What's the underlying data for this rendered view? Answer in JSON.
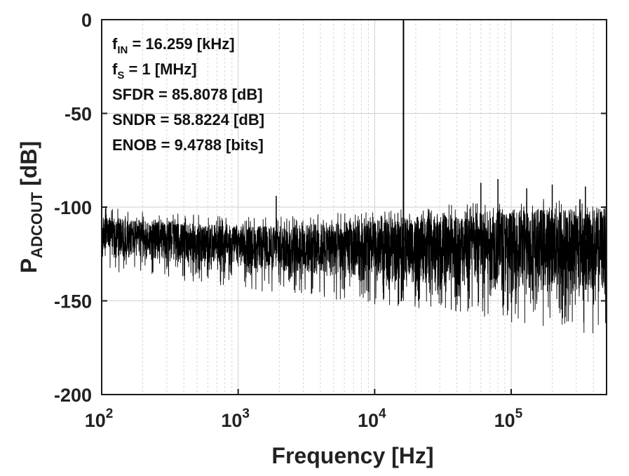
{
  "chart_data": {
    "type": "line",
    "xscale": "log",
    "xlim": [
      100,
      500000
    ],
    "ylim": [
      -200,
      0
    ],
    "xlabel": "Frequency [Hz]",
    "ylabel": {
      "main": "P",
      "sub": "ADCOUT",
      "unit": " [dB]"
    },
    "grid": true,
    "x_ticks": [
      {
        "value": 100,
        "base": "10",
        "exp": "2"
      },
      {
        "value": 1000,
        "base": "10",
        "exp": "3"
      },
      {
        "value": 10000,
        "base": "10",
        "exp": "4"
      },
      {
        "value": 100000,
        "base": "10",
        "exp": "5"
      }
    ],
    "y_ticks": [
      {
        "value": 0,
        "label": "0"
      },
      {
        "value": -50,
        "label": "-50"
      },
      {
        "value": -100,
        "label": "-100"
      },
      {
        "value": -150,
        "label": "-150"
      },
      {
        "value": -200,
        "label": "-200"
      }
    ],
    "line_color": "#000000",
    "noise_envelope": [
      {
        "f": 100,
        "upper": -105,
        "lower": -125,
        "min_spike": -135
      },
      {
        "f": 200,
        "upper": -107,
        "lower": -128,
        "min_spike": -137
      },
      {
        "f": 500,
        "upper": -109,
        "lower": -130,
        "min_spike": -140
      },
      {
        "f": 1000,
        "upper": -110,
        "lower": -132,
        "min_spike": -143
      },
      {
        "f": 2000,
        "upper": -110,
        "lower": -135,
        "min_spike": -147
      },
      {
        "f": 5000,
        "upper": -108,
        "lower": -138,
        "min_spike": -150
      },
      {
        "f": 10000,
        "upper": -107,
        "lower": -140,
        "min_spike": -152
      },
      {
        "f": 30000,
        "upper": -104,
        "lower": -142,
        "min_spike": -155
      },
      {
        "f": 100000,
        "upper": -101,
        "lower": -145,
        "min_spike": -162
      },
      {
        "f": 300000,
        "upper": -100,
        "lower": -146,
        "min_spike": -167
      },
      {
        "f": 500000,
        "upper": -100,
        "lower": -147,
        "min_spike": -170
      }
    ],
    "fundamental": {
      "f": 16259,
      "power": 0
    },
    "spurs": [
      {
        "f": 1900,
        "power": -94
      },
      {
        "f": 60000,
        "power": -87
      },
      {
        "f": 80000,
        "power": -85
      },
      {
        "f": 130000,
        "power": -90
      },
      {
        "f": 200000,
        "power": -88
      },
      {
        "f": 350000,
        "power": -89
      }
    ],
    "annotations": [
      {
        "main": "f",
        "sub": "IN",
        "text": " = 16.259 [kHz]"
      },
      {
        "main": "f",
        "sub": "S",
        "text": " = 1 [MHz]"
      },
      {
        "main": "SFDR",
        "sub": "",
        "text": " = 85.8078 [dB]"
      },
      {
        "main": "SNDR",
        "sub": "",
        "text": " = 58.8224 [dB]"
      },
      {
        "main": "ENOB",
        "sub": "",
        "text": " = 9.4788 [bits]"
      }
    ]
  }
}
